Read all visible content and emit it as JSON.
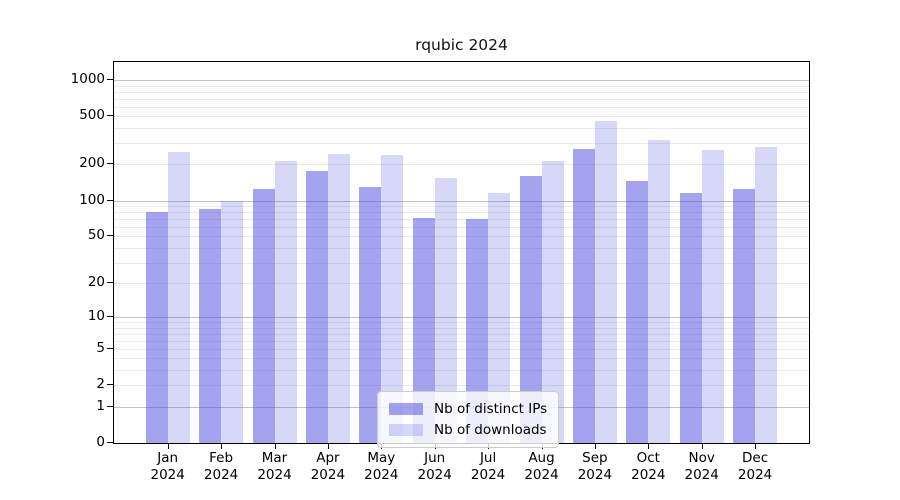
{
  "title": "rqubic 2024",
  "chart_data": {
    "type": "bar",
    "title": "rqubic 2024",
    "categories": [
      "Jan",
      "Feb",
      "Mar",
      "Apr",
      "May",
      "Jun",
      "Jul",
      "Aug",
      "Sep",
      "Oct",
      "Nov",
      "Dec"
    ],
    "x_tick_second_line": "2024",
    "series": [
      {
        "name": "Nb of distinct IPs",
        "color": "rgba(71,71,225,0.5)",
        "values": [
          80,
          85,
          125,
          175,
          130,
          72,
          70,
          160,
          270,
          145,
          115,
          125
        ]
      },
      {
        "name": "Nb of downloads",
        "color": "rgba(71,71,225,0.22)",
        "values": [
          255,
          100,
          215,
          245,
          240,
          155,
          115,
          215,
          460,
          320,
          265,
          280
        ]
      }
    ],
    "y_ticks": [
      0,
      1,
      2,
      5,
      10,
      20,
      50,
      100,
      200,
      500,
      1000
    ],
    "y_scale": "log1p",
    "ylim": [
      0,
      1450
    ],
    "grid": true,
    "legend_position": "bottom-center",
    "colors": {
      "major_grid": "#c3c3c3",
      "minor_grid": "#eaeaea",
      "axis": "#000000",
      "text": "#111111",
      "background": "#ffffff"
    }
  }
}
